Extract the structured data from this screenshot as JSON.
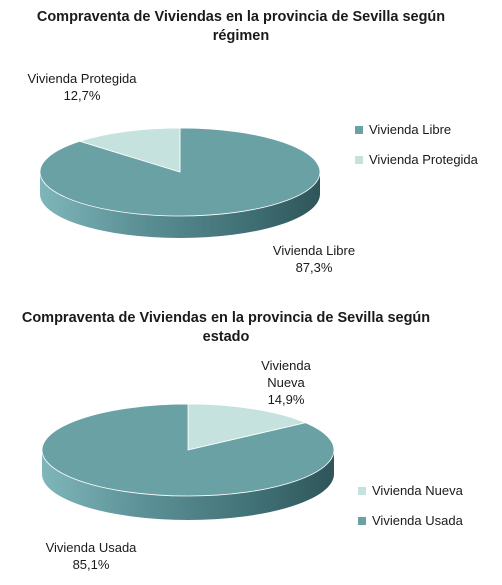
{
  "chart_data": [
    {
      "type": "pie",
      "title": "Compraventa de Viviendas en la provincia de Sevilla según régimen",
      "slices": [
        {
          "label": "Vivienda Libre",
          "value": 87.3,
          "display": "87,3%",
          "color": "#6aa1a5"
        },
        {
          "label": "Vivienda Protegida",
          "value": 12.7,
          "display": "12,7%",
          "color": "#c6e2de"
        }
      ],
      "legend": [
        "Vivienda Libre",
        "Vivienda Protegida"
      ],
      "legend_position": "right"
    },
    {
      "type": "pie",
      "title": "Compraventa de Viviendas en la provincia de Sevilla según estado",
      "slices": [
        {
          "label": "Vivienda Nueva",
          "label_lines": [
            "Vivienda",
            "Nueva"
          ],
          "value": 14.9,
          "display": "14,9%",
          "color": "#c6e2de"
        },
        {
          "label": "Vivienda Usada",
          "value": 85.1,
          "display": "85,1%",
          "color": "#6aa1a5"
        }
      ],
      "legend": [
        "Vivienda Nueva",
        "Vivienda Usada"
      ],
      "legend_position": "right"
    }
  ]
}
